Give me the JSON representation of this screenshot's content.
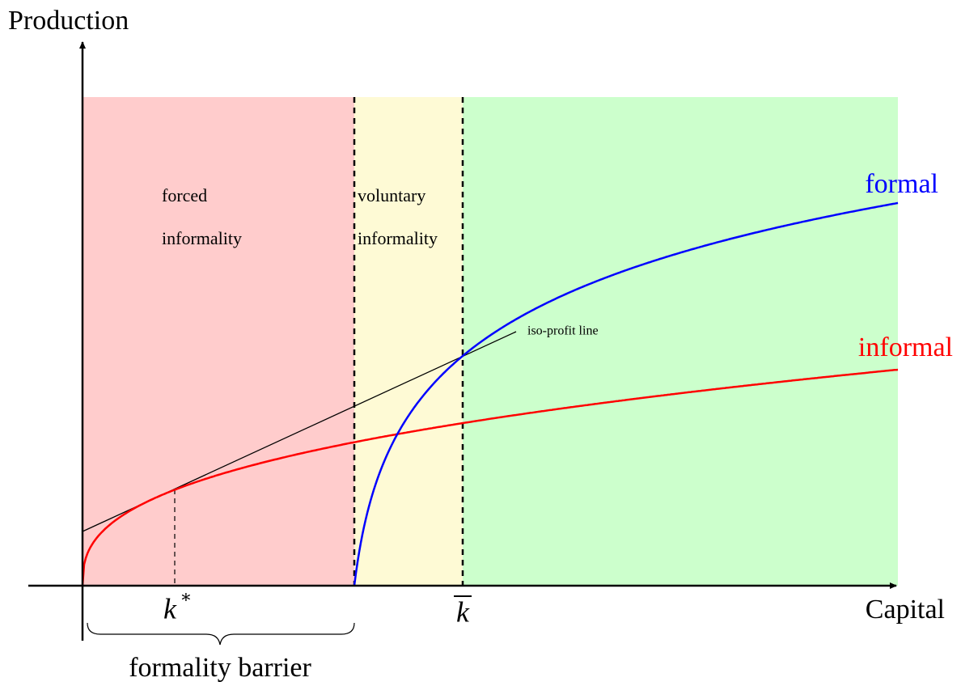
{
  "axes": {
    "y_label": "Production",
    "x_label": "Capital"
  },
  "curves": {
    "formal": "formal",
    "informal": "informal",
    "iso_profit": "iso-profit line"
  },
  "regions": {
    "forced": [
      "forced",
      "informality"
    ],
    "voluntary": [
      "voluntary",
      "informality"
    ]
  },
  "markers": {
    "k_star": {
      "base": "k",
      "sup": "∗"
    },
    "k_bar": "k"
  },
  "brace_label": "formality barrier"
}
